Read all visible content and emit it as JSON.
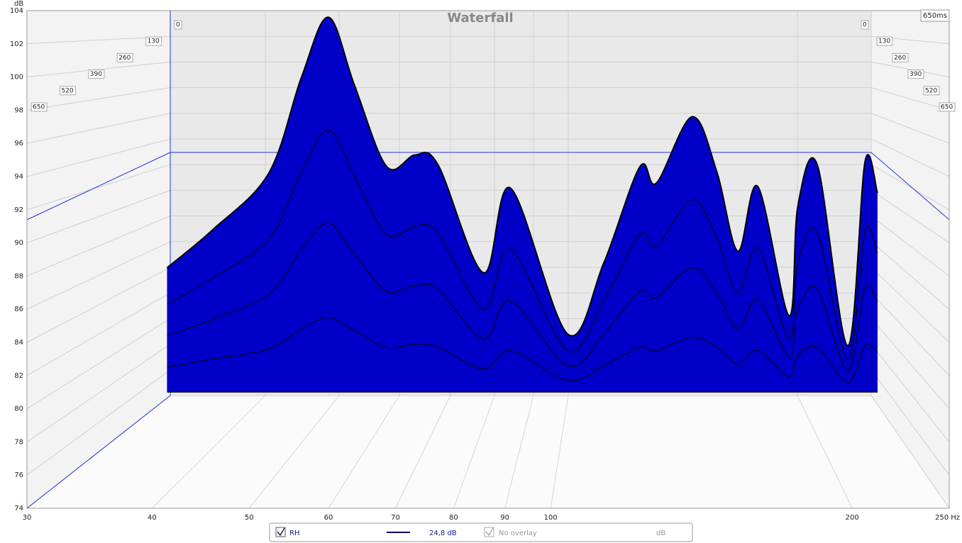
{
  "chart_data": {
    "type": "waterfall",
    "title": "Waterfall",
    "y_label": "dB",
    "log_x": true,
    "grid": true,
    "color": "#0000c8",
    "outline_color": "#000000",
    "xlim": [
      30,
      250
    ],
    "ylim": [
      74,
      104
    ],
    "xticks": [
      30,
      40,
      50,
      60,
      70,
      80,
      90,
      100,
      200,
      {
        "value": 250,
        "label": "250 Hz"
      }
    ],
    "yticks": [
      74,
      76,
      78,
      80,
      82,
      84,
      86,
      88,
      90,
      92,
      94,
      96,
      98,
      100,
      102,
      104
    ],
    "time_ticks": [
      0,
      130,
      260,
      390,
      520,
      650
    ],
    "time_axis_label": "650ms",
    "x": [
      41.4,
      46,
      52.3,
      56.4,
      60,
      63.7,
      68.6,
      73.2,
      77.2,
      85.7,
      91.2,
      104,
      113,
      122.8,
      127.5,
      138.4,
      146.5,
      153.8,
      161,
      173,
      176.5,
      184.6,
      198,
      206,
      212
    ],
    "slices": [
      {
        "time": 0,
        "values": [
          88.5,
          90.8,
          94.2,
          100,
          103.6,
          99.5,
          94.6,
          95.3,
          94.7,
          88.2,
          93.3,
          84.5,
          88.8,
          94.6,
          93.6,
          97.6,
          94.3,
          89.5,
          93.4,
          85.6,
          92.2,
          94.7,
          83.8,
          94.9,
          93
        ]
      },
      {
        "time": 130,
        "values": [
          86.3,
          87.9,
          90.2,
          94.3,
          96.8,
          94.0,
          90.5,
          91.0,
          90.6,
          86.0,
          89.6,
          83.5,
          86.5,
          90.5,
          89.8,
          92.6,
          90.3,
          87.0,
          89.7,
          84.2,
          88.8,
          90.6,
          83.0,
          90.7,
          89.4
        ]
      },
      {
        "time": 260,
        "values": [
          84.4,
          85.4,
          86.9,
          89.6,
          91.2,
          89.3,
          87.1,
          87.4,
          87.2,
          84.2,
          86.5,
          82.6,
          84.5,
          87.1,
          86.7,
          88.5,
          87.0,
          84.8,
          86.6,
          83.1,
          86.0,
          87.2,
          82.3,
          87.3,
          86.4
        ]
      },
      {
        "time": 390,
        "values": [
          82.5,
          83.0,
          83.6,
          84.8,
          85.5,
          84.7,
          83.7,
          83.9,
          83.7,
          82.4,
          83.5,
          81.7,
          82.6,
          83.7,
          83.5,
          84.3,
          83.7,
          82.7,
          83.5,
          81.9,
          83.2,
          83.7,
          81.6,
          83.8,
          83.4
        ]
      },
      {
        "time": 650,
        "values": [
          81,
          81,
          81,
          81,
          81,
          81,
          81,
          81,
          81,
          81,
          81,
          81,
          81,
          81,
          81,
          81,
          81,
          81,
          81,
          81,
          81,
          81,
          81,
          81,
          81
        ]
      }
    ],
    "legend": {
      "trace": "RH",
      "trace_value": "24,8 dB",
      "overlay": "No overlay",
      "overlay_unit": "dB"
    }
  }
}
